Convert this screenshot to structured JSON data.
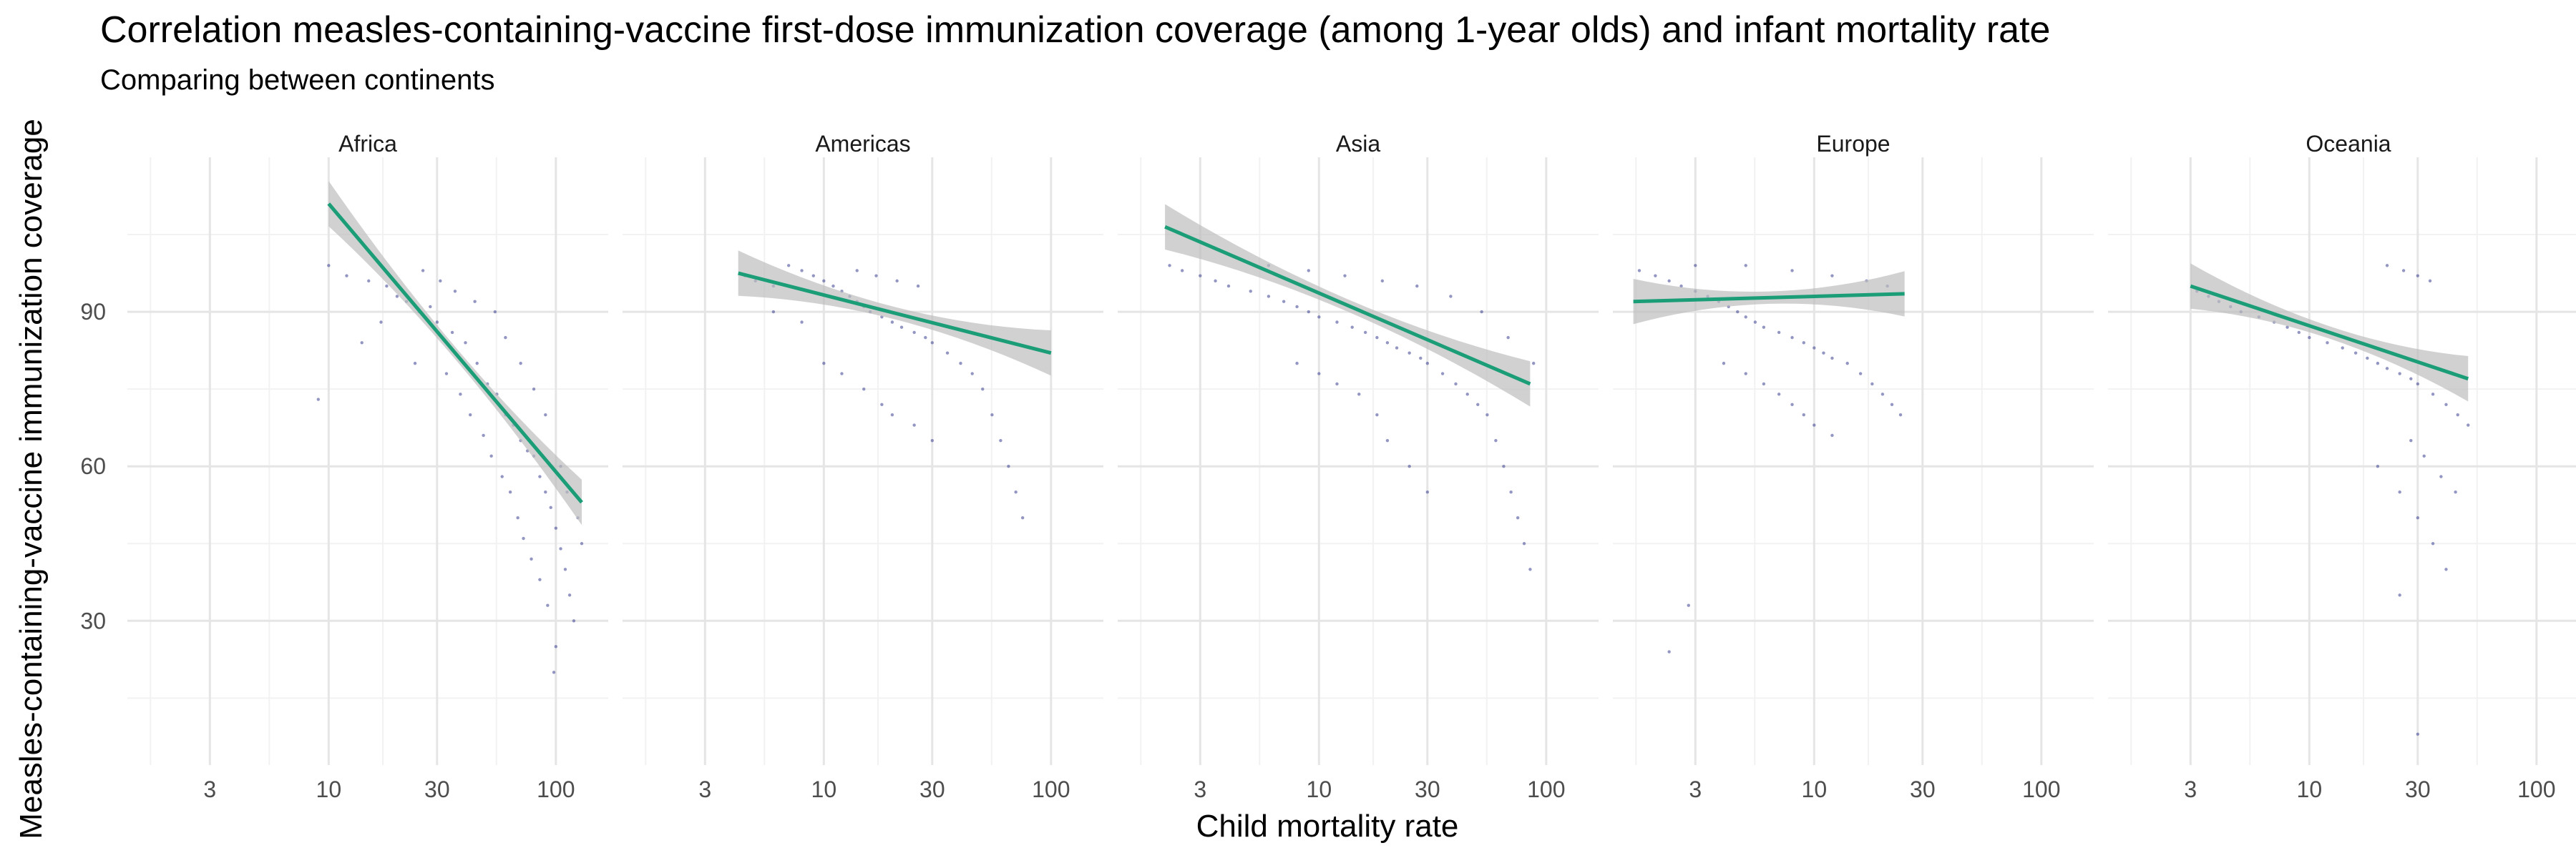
{
  "title": "Correlation measles-containing-vaccine first-dose immunization coverage (among 1-year olds) and infant mortality rate",
  "subtitle": "Comparing between continents",
  "colors": {
    "points": "#3b3f8f",
    "line": "#1b9e77",
    "ribbon": "#bdbdbd",
    "grid_major": "#e5e5e5",
    "grid_minor": "#f2f2f2"
  },
  "chart_data": {
    "type": "scatter",
    "x_scale": "log10",
    "xlabel": "Child mortality rate",
    "ylabel": "Measles-containing-vaccine immunization coverage",
    "x_ticks": [
      3,
      10,
      30,
      100
    ],
    "x_tick_labels": [
      "3",
      "10",
      "30",
      "100"
    ],
    "xlim": [
      1.3,
      170
    ],
    "y_ticks": [
      30,
      60,
      90
    ],
    "y_tick_labels": [
      "30",
      "60",
      "90"
    ],
    "ylim": [
      2,
      120
    ],
    "grid": true,
    "legend": "none",
    "facets": [
      {
        "name": "Africa",
        "points_x_range": [
          8.5,
          135
        ],
        "fit_line": {
          "x": [
            10,
            130
          ],
          "y": [
            111,
            53
          ]
        },
        "points": [
          [
            10,
            99
          ],
          [
            12,
            97
          ],
          [
            15,
            96
          ],
          [
            18,
            95
          ],
          [
            20,
            93
          ],
          [
            22,
            92
          ],
          [
            25,
            90
          ],
          [
            28,
            91
          ],
          [
            30,
            88
          ],
          [
            35,
            86
          ],
          [
            40,
            84
          ],
          [
            45,
            80
          ],
          [
            50,
            76
          ],
          [
            55,
            74
          ],
          [
            60,
            70
          ],
          [
            65,
            68
          ],
          [
            70,
            65
          ],
          [
            75,
            63
          ],
          [
            80,
            62
          ],
          [
            85,
            58
          ],
          [
            90,
            55
          ],
          [
            95,
            52
          ],
          [
            100,
            48
          ],
          [
            105,
            44
          ],
          [
            110,
            40
          ],
          [
            115,
            35
          ],
          [
            120,
            30
          ],
          [
            100,
            25
          ],
          [
            98,
            20
          ],
          [
            9,
            73
          ],
          [
            14,
            84
          ],
          [
            17,
            88
          ],
          [
            24,
            80
          ],
          [
            33,
            78
          ],
          [
            38,
            74
          ],
          [
            42,
            70
          ],
          [
            48,
            66
          ],
          [
            52,
            62
          ],
          [
            58,
            58
          ],
          [
            63,
            55
          ],
          [
            68,
            50
          ],
          [
            72,
            46
          ],
          [
            78,
            42
          ],
          [
            85,
            38
          ],
          [
            92,
            33
          ],
          [
            105,
            60
          ],
          [
            112,
            55
          ],
          [
            125,
            50
          ],
          [
            130,
            45
          ],
          [
            60,
            85
          ],
          [
            70,
            80
          ],
          [
            80,
            75
          ],
          [
            90,
            70
          ],
          [
            26,
            98
          ],
          [
            31,
            96
          ],
          [
            36,
            94
          ],
          [
            44,
            92
          ],
          [
            54,
            90
          ]
        ]
      },
      {
        "name": "Americas",
        "points_x_range": [
          4,
          100
        ],
        "fit_line": {
          "x": [
            4.2,
            100
          ],
          "y": [
            97.5,
            82
          ]
        },
        "points": [
          [
            4.5,
            97
          ],
          [
            5,
            96
          ],
          [
            6,
            95
          ],
          [
            7,
            99
          ],
          [
            8,
            98
          ],
          [
            9,
            97
          ],
          [
            10,
            96
          ],
          [
            11,
            95
          ],
          [
            12,
            94
          ],
          [
            13,
            93
          ],
          [
            14,
            92
          ],
          [
            15,
            91
          ],
          [
            16,
            90
          ],
          [
            18,
            89
          ],
          [
            20,
            88
          ],
          [
            22,
            87
          ],
          [
            25,
            86
          ],
          [
            28,
            85
          ],
          [
            30,
            84
          ],
          [
            35,
            82
          ],
          [
            40,
            80
          ],
          [
            45,
            78
          ],
          [
            50,
            75
          ],
          [
            55,
            70
          ],
          [
            60,
            65
          ],
          [
            65,
            60
          ],
          [
            70,
            55
          ],
          [
            75,
            50
          ],
          [
            10,
            80
          ],
          [
            12,
            78
          ],
          [
            15,
            75
          ],
          [
            18,
            72
          ],
          [
            20,
            70
          ],
          [
            25,
            68
          ],
          [
            30,
            65
          ],
          [
            6,
            90
          ],
          [
            8,
            88
          ],
          [
            14,
            98
          ],
          [
            17,
            97
          ],
          [
            21,
            96
          ],
          [
            26,
            95
          ]
        ]
      },
      {
        "name": "Asia",
        "points_x_range": [
          2,
          90
        ],
        "fit_line": {
          "x": [
            2.1,
            85
          ],
          "y": [
            106.5,
            76
          ]
        },
        "points": [
          [
            2.2,
            99
          ],
          [
            2.5,
            98
          ],
          [
            3,
            97
          ],
          [
            3.5,
            96
          ],
          [
            4,
            95
          ],
          [
            5,
            94
          ],
          [
            6,
            93
          ],
          [
            7,
            92
          ],
          [
            8,
            91
          ],
          [
            9,
            90
          ],
          [
            10,
            89
          ],
          [
            12,
            88
          ],
          [
            14,
            87
          ],
          [
            16,
            86
          ],
          [
            18,
            85
          ],
          [
            20,
            84
          ],
          [
            22,
            83
          ],
          [
            25,
            82
          ],
          [
            28,
            81
          ],
          [
            30,
            80
          ],
          [
            35,
            78
          ],
          [
            40,
            76
          ],
          [
            45,
            74
          ],
          [
            50,
            72
          ],
          [
            55,
            70
          ],
          [
            60,
            65
          ],
          [
            65,
            60
          ],
          [
            70,
            55
          ],
          [
            75,
            50
          ],
          [
            80,
            45
          ],
          [
            85,
            40
          ],
          [
            8,
            80
          ],
          [
            10,
            78
          ],
          [
            12,
            76
          ],
          [
            15,
            74
          ],
          [
            18,
            70
          ],
          [
            20,
            65
          ],
          [
            25,
            60
          ],
          [
            30,
            55
          ],
          [
            6,
            99
          ],
          [
            9,
            98
          ],
          [
            13,
            97
          ],
          [
            19,
            96
          ],
          [
            27,
            95
          ],
          [
            38,
            93
          ],
          [
            52,
            90
          ],
          [
            68,
            85
          ],
          [
            88,
            80
          ]
        ]
      },
      {
        "name": "Europe",
        "points_x_range": [
          1.6,
          25
        ],
        "fit_line": {
          "x": [
            1.6,
            25
          ],
          "y": [
            92,
            93.5
          ]
        },
        "points": [
          [
            1.7,
            98
          ],
          [
            2,
            97
          ],
          [
            2.3,
            96
          ],
          [
            2.6,
            95
          ],
          [
            3,
            94
          ],
          [
            3.4,
            93
          ],
          [
            3.8,
            92
          ],
          [
            4.2,
            91
          ],
          [
            4.6,
            90
          ],
          [
            5,
            89
          ],
          [
            5.5,
            88
          ],
          [
            6,
            87
          ],
          [
            7,
            86
          ],
          [
            8,
            85
          ],
          [
            9,
            84
          ],
          [
            10,
            83
          ],
          [
            11,
            82
          ],
          [
            12,
            81
          ],
          [
            14,
            80
          ],
          [
            16,
            78
          ],
          [
            18,
            76
          ],
          [
            20,
            74
          ],
          [
            22,
            72
          ],
          [
            24,
            70
          ],
          [
            4,
            80
          ],
          [
            5,
            78
          ],
          [
            6,
            76
          ],
          [
            7,
            74
          ],
          [
            8,
            72
          ],
          [
            9,
            70
          ],
          [
            10,
            68
          ],
          [
            12,
            66
          ],
          [
            3,
            99
          ],
          [
            5,
            99
          ],
          [
            8,
            98
          ],
          [
            12,
            97
          ],
          [
            17,
            96
          ],
          [
            21,
            95
          ],
          [
            2.8,
            33
          ],
          [
            2.3,
            24
          ]
        ]
      },
      {
        "name": "Oceania",
        "points_x_range": [
          3,
          50
        ],
        "fit_line": {
          "x": [
            3,
            50
          ],
          "y": [
            95,
            77
          ]
        },
        "points": [
          [
            3.2,
            94
          ],
          [
            3.6,
            93
          ],
          [
            4,
            92
          ],
          [
            4.5,
            91
          ],
          [
            5,
            90
          ],
          [
            6,
            89
          ],
          [
            7,
            88
          ],
          [
            8,
            87
          ],
          [
            9,
            86
          ],
          [
            10,
            85
          ],
          [
            12,
            84
          ],
          [
            14,
            83
          ],
          [
            16,
            82
          ],
          [
            18,
            81
          ],
          [
            20,
            80
          ],
          [
            22,
            79
          ],
          [
            25,
            78
          ],
          [
            28,
            77
          ],
          [
            30,
            76
          ],
          [
            35,
            74
          ],
          [
            40,
            72
          ],
          [
            45,
            70
          ],
          [
            50,
            68
          ],
          [
            20,
            60
          ],
          [
            25,
            55
          ],
          [
            30,
            50
          ],
          [
            35,
            45
          ],
          [
            40,
            40
          ],
          [
            25,
            35
          ],
          [
            22,
            99
          ],
          [
            26,
            98
          ],
          [
            30,
            97
          ],
          [
            34,
            96
          ],
          [
            28,
            65
          ],
          [
            32,
            62
          ],
          [
            38,
            58
          ],
          [
            44,
            55
          ],
          [
            30,
            8
          ]
        ]
      }
    ]
  }
}
